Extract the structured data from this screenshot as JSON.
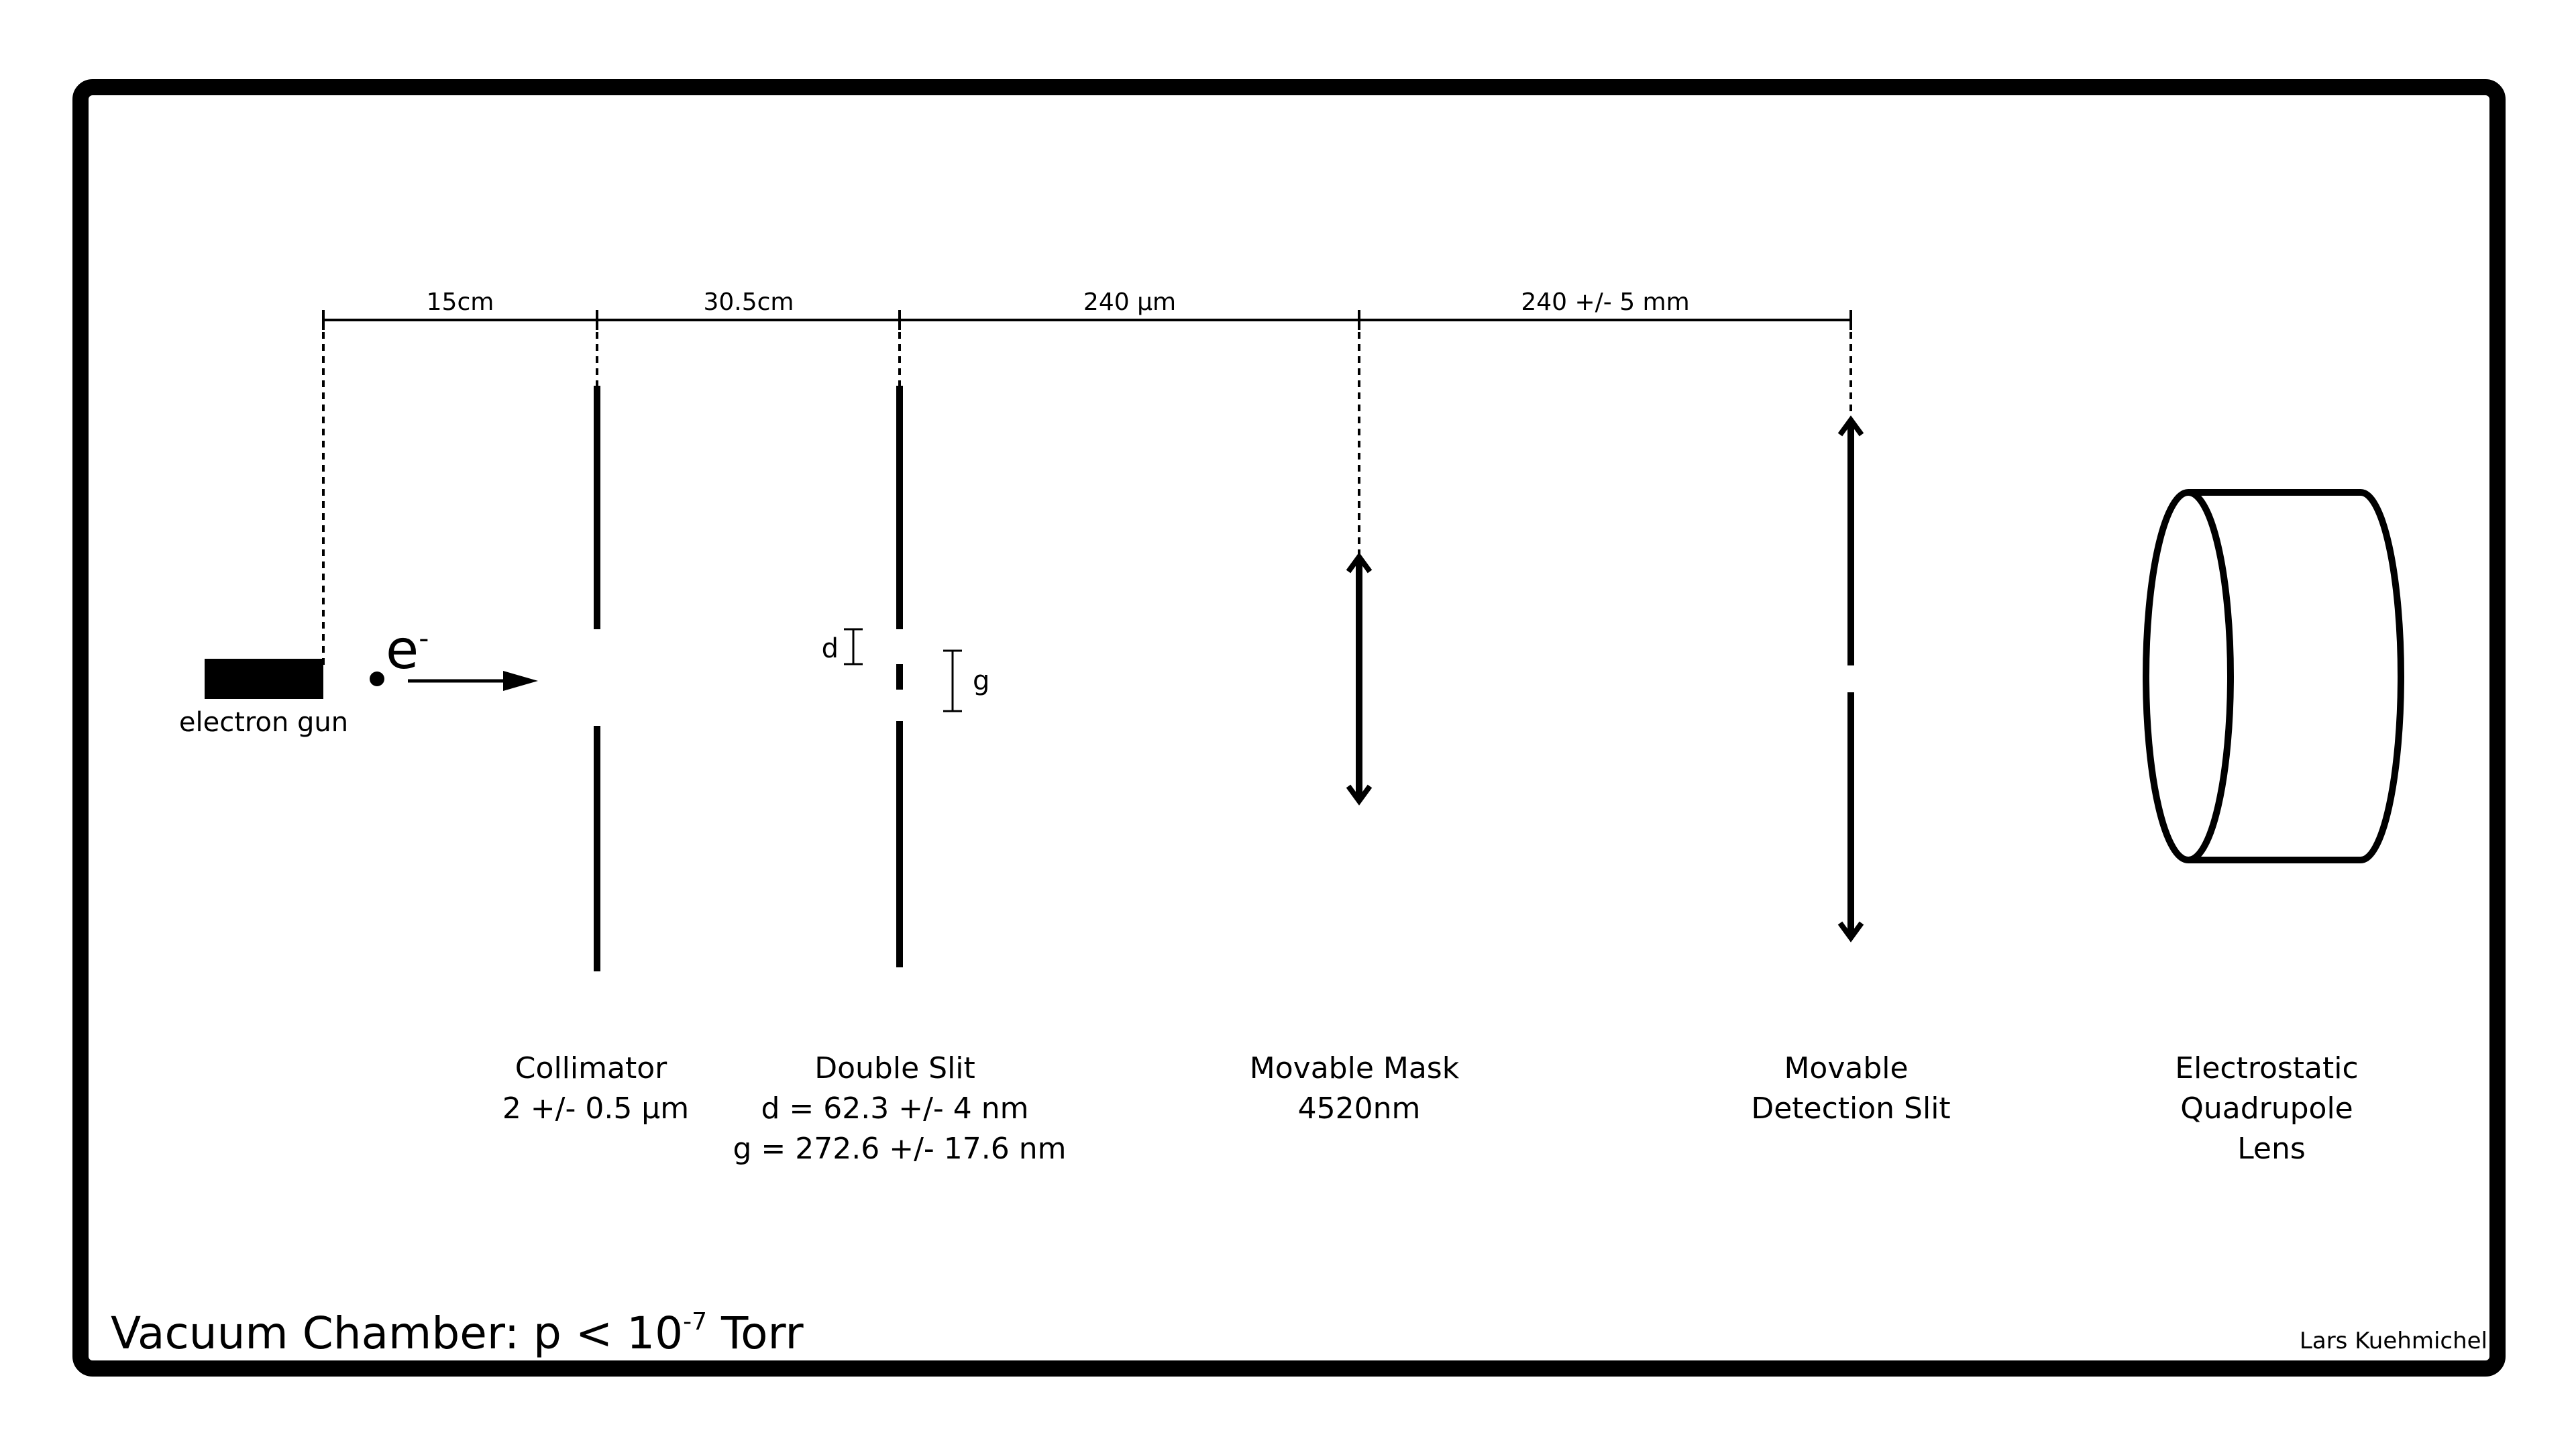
{
  "colors": {
    "ink": "#000000",
    "background": "#ffffff"
  },
  "dimensions": {
    "gun_to_collimator": "15cm",
    "collimator_to_double_slit": "30.5cm",
    "double_slit_to_mask": "240 µm",
    "mask_to_detection_slit": "240 +/- 5 mm"
  },
  "electron": {
    "base": "e",
    "superscript": "-"
  },
  "slit_marks": {
    "d": "d",
    "g": "g"
  },
  "components": {
    "electron_gun": {
      "label": "electron gun"
    },
    "collimator": {
      "line1": "Collimator",
      "line2": "2 +/- 0.5 µm"
    },
    "double_slit": {
      "line1": "Double Slit",
      "line2": "d = 62.3 +/- 4 nm",
      "line3": "g = 272.6 +/- 17.6 nm"
    },
    "movable_mask": {
      "line1": "Movable Mask",
      "line2": "4520nm"
    },
    "detection_slit": {
      "line1": "Movable",
      "line2": "Detection Slit"
    },
    "quadrupole_lens": {
      "line1": "Electrostatic",
      "line2": "Quadrupole",
      "line3": "Lens"
    }
  },
  "chamber": {
    "title_main": "Vacuum Chamber: p < 10",
    "title_exponent": "-7",
    "title_unit": " Torr",
    "credit": "Lars Kuehmichel"
  }
}
